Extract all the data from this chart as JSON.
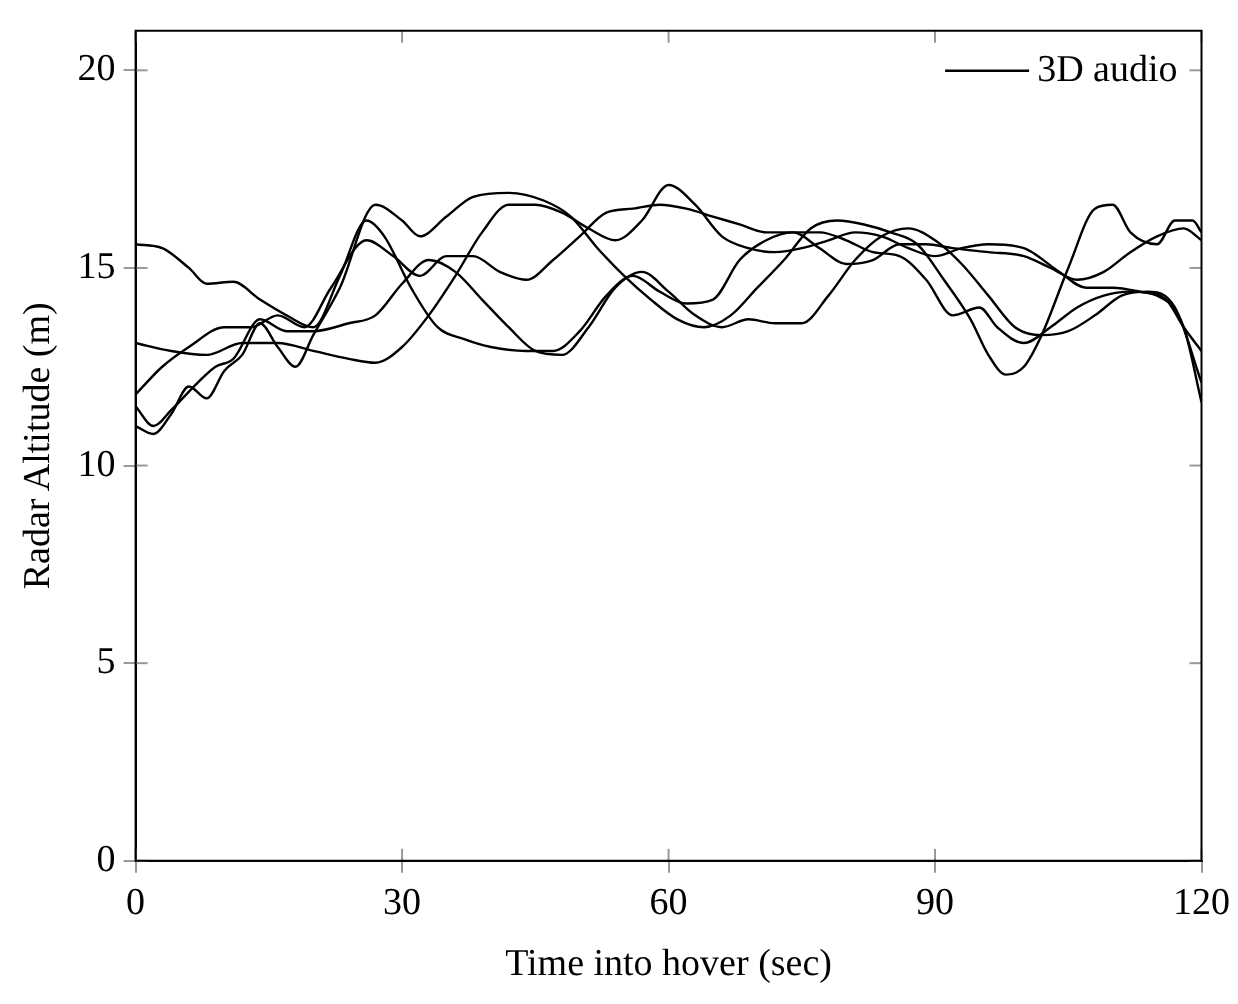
{
  "chart_data": {
    "type": "line",
    "xlabel": "Time into hover (sec)",
    "ylabel": "Radar Altitude (m)",
    "xlim": [
      0,
      120
    ],
    "ylim": [
      0,
      21
    ],
    "xticks": [
      0,
      30,
      60,
      90,
      120
    ],
    "yticks": [
      0,
      5,
      10,
      15,
      20
    ],
    "grid": false,
    "legend": "top right",
    "marker": "none",
    "line_style": "solid",
    "series": [
      {
        "name": "3D audio",
        "color": "#000000",
        "x": [
          0,
          3,
          6,
          8,
          11,
          14,
          17,
          20,
          23,
          26,
          28,
          31,
          34,
          37,
          40,
          44,
          47,
          50,
          53,
          56,
          59,
          62,
          65,
          68,
          71,
          74,
          77,
          80,
          83,
          86,
          89,
          92,
          95,
          97,
          100,
          103,
          106,
          109,
          112,
          115,
          118,
          120
        ],
        "values": [
          15.6,
          15.5,
          15.0,
          14.6,
          14.65,
          14.2,
          13.8,
          13.5,
          14.8,
          16.2,
          15.8,
          14.5,
          13.5,
          13.2,
          13.0,
          12.9,
          12.9,
          13.4,
          14.3,
          14.8,
          14.4,
          14.1,
          14.2,
          15.2,
          15.7,
          15.9,
          15.9,
          15.7,
          15.4,
          15.3,
          14.7,
          13.8,
          14.0,
          13.5,
          13.1,
          13.5,
          14.0,
          14.3,
          14.4,
          14.3,
          13.5,
          11.6
        ]
      },
      {
        "color": "#000000",
        "x": [
          0,
          4,
          8,
          12,
          16,
          20,
          24,
          27,
          30,
          33,
          36,
          39,
          42,
          45,
          48,
          51,
          54,
          57,
          60,
          63,
          66,
          69,
          72,
          75,
          78,
          81,
          84,
          87,
          90,
          93,
          96,
          100,
          104,
          107,
          110,
          113,
          116,
          118,
          120
        ],
        "values": [
          13.1,
          12.9,
          12.8,
          13.1,
          13.1,
          12.9,
          12.7,
          12.6,
          13.0,
          13.8,
          14.8,
          15.9,
          16.6,
          16.6,
          16.4,
          16.0,
          15.7,
          16.2,
          17.1,
          16.6,
          15.8,
          15.5,
          15.4,
          15.5,
          15.7,
          15.9,
          15.8,
          15.5,
          15.3,
          15.5,
          15.6,
          15.5,
          14.9,
          14.5,
          14.5,
          14.4,
          14.2,
          13.5,
          12.9
        ]
      },
      {
        "color": "#000000",
        "x": [
          0,
          3,
          6,
          10,
          13,
          16,
          19,
          22,
          26,
          29,
          32,
          35,
          38,
          41,
          44,
          47,
          50,
          53,
          56,
          59,
          62,
          65,
          68,
          71,
          74,
          77,
          80,
          83,
          86,
          89,
          92,
          96,
          100,
          103,
          106,
          109,
          112,
          115,
          118,
          120
        ],
        "values": [
          11.8,
          12.5,
          13.0,
          13.5,
          13.5,
          13.8,
          13.5,
          14.5,
          15.7,
          15.3,
          14.8,
          15.3,
          15.3,
          14.9,
          14.7,
          15.2,
          15.8,
          16.4,
          16.5,
          16.6,
          16.5,
          16.3,
          16.1,
          15.9,
          15.9,
          15.5,
          15.1,
          15.2,
          15.6,
          15.6,
          15.5,
          15.4,
          15.3,
          15.0,
          14.7,
          14.9,
          15.4,
          15.8,
          16.0,
          15.7
        ]
      },
      {
        "color": "#000000",
        "x": [
          0,
          2,
          4,
          6,
          8,
          10,
          12,
          14,
          16,
          18,
          20,
          23,
          27,
          30,
          32,
          35,
          38,
          42,
          46,
          49,
          52,
          55,
          58,
          61,
          64,
          67,
          70,
          73,
          76,
          79,
          82,
          85,
          88,
          91,
          94,
          96,
          98,
          100,
          102,
          105,
          108,
          110,
          112,
          115,
          117,
          119,
          120
        ],
        "values": [
          11.0,
          10.8,
          11.3,
          12.0,
          11.7,
          12.4,
          12.8,
          13.6,
          13.0,
          12.5,
          13.3,
          14.5,
          16.6,
          16.2,
          15.8,
          16.3,
          16.8,
          16.9,
          16.7,
          16.3,
          15.5,
          14.8,
          14.2,
          13.7,
          13.5,
          13.8,
          14.5,
          15.2,
          16.0,
          16.2,
          16.1,
          15.9,
          15.6,
          14.7,
          13.7,
          12.8,
          12.3,
          12.5,
          13.3,
          15.0,
          16.5,
          16.6,
          15.9,
          15.6,
          16.2,
          16.2,
          15.9
        ]
      },
      {
        "color": "#000000",
        "x": [
          0,
          2,
          4,
          7,
          9,
          11,
          14,
          17,
          20,
          24,
          27,
          30,
          33,
          36,
          39,
          42,
          45,
          48,
          51,
          54,
          57,
          60,
          63,
          66,
          69,
          72,
          75,
          78,
          81,
          84,
          87,
          90,
          93,
          96,
          99,
          102,
          105,
          108,
          111,
          114,
          117,
          120
        ],
        "values": [
          11.5,
          11.0,
          11.4,
          12.1,
          12.5,
          12.7,
          13.7,
          13.4,
          13.4,
          13.6,
          13.8,
          14.6,
          15.2,
          14.9,
          14.2,
          13.5,
          12.9,
          12.8,
          13.5,
          14.5,
          14.9,
          14.4,
          13.8,
          13.5,
          13.7,
          13.6,
          13.6,
          14.3,
          15.2,
          15.8,
          16.0,
          15.7,
          15.1,
          14.3,
          13.5,
          13.3,
          13.4,
          13.8,
          14.3,
          14.4,
          14.0,
          12.1
        ]
      }
    ]
  }
}
